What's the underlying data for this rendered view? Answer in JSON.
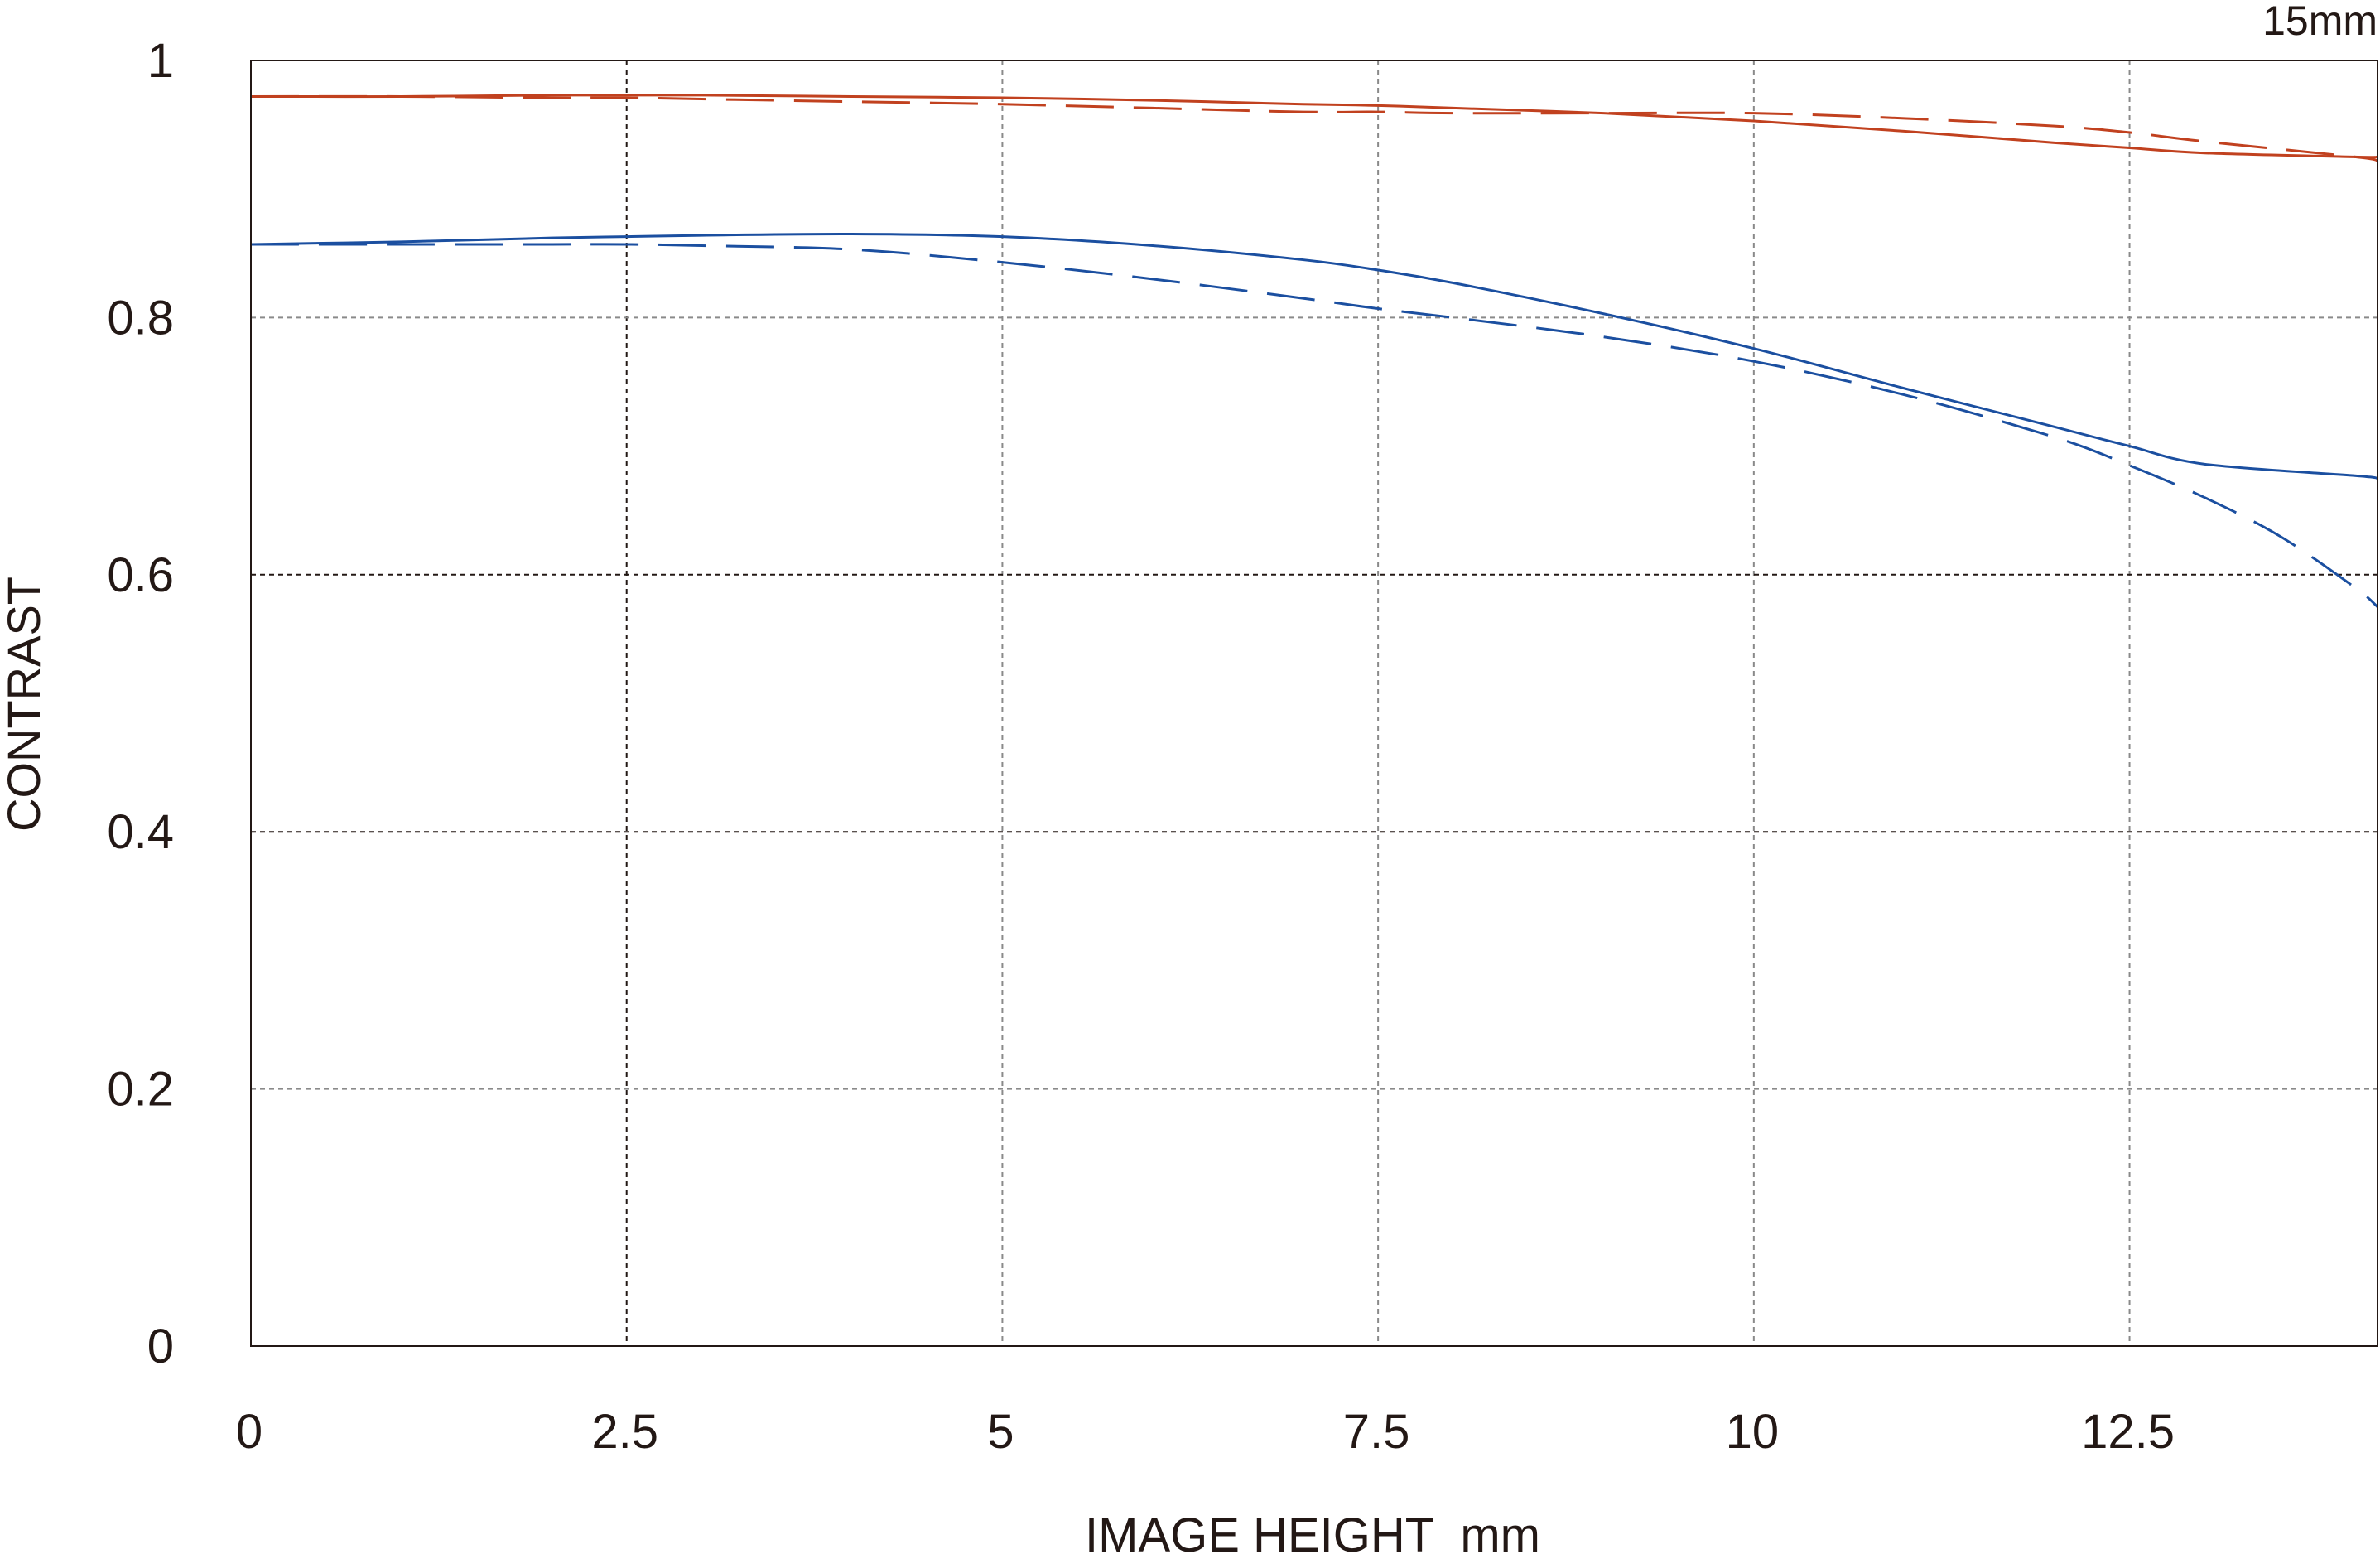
{
  "chart_data": {
    "type": "line",
    "title": "15mm",
    "xlabel": "IMAGE HEIGHT  mm",
    "ylabel": "CONTRAST",
    "xlim": [
      0,
      14.15
    ],
    "ylim": [
      0,
      1
    ],
    "x_ticks": [
      0,
      2.5,
      5,
      7.5,
      10,
      12.5
    ],
    "x_tick_labels": [
      "0",
      "2.5",
      "5",
      "7.5",
      "10",
      "12.5"
    ],
    "y_ticks": [
      0,
      0.2,
      0.4,
      0.6,
      0.8,
      1
    ],
    "y_tick_labels": [
      "0",
      "0.2",
      "0.4",
      "0.6",
      "0.8",
      "1"
    ],
    "grid": true,
    "legend": "none",
    "series": [
      {
        "color": "#c1411f",
        "dash": "solid",
        "x": [
          0,
          1,
          2,
          2.5,
          3,
          4,
          5,
          6,
          7,
          7.5,
          8,
          9,
          10,
          11,
          12,
          12.5,
          13,
          14,
          14.15
        ],
        "y": [
          0.972,
          0.972,
          0.973,
          0.973,
          0.973,
          0.972,
          0.971,
          0.969,
          0.966,
          0.965,
          0.963,
          0.959,
          0.953,
          0.945,
          0.936,
          0.932,
          0.928,
          0.925,
          0.925
        ]
      },
      {
        "color": "#c1411f",
        "dash": "dashed",
        "x": [
          0,
          1,
          2,
          2.5,
          3,
          4,
          5,
          6,
          7,
          7.5,
          8,
          9,
          10,
          11,
          12,
          12.5,
          13,
          14,
          14.15
        ],
        "y": [
          0.972,
          0.972,
          0.971,
          0.971,
          0.97,
          0.968,
          0.966,
          0.963,
          0.96,
          0.96,
          0.959,
          0.959,
          0.959,
          0.955,
          0.949,
          0.944,
          0.937,
          0.925,
          0.922
        ]
      },
      {
        "color": "#1b4fa0",
        "dash": "solid",
        "x": [
          0,
          1,
          2,
          2.5,
          3,
          4,
          5,
          6,
          7,
          7.5,
          8,
          9,
          10,
          11,
          12,
          12.5,
          13,
          14,
          14.15
        ],
        "y": [
          0.857,
          0.859,
          0.862,
          0.863,
          0.864,
          0.865,
          0.863,
          0.856,
          0.845,
          0.837,
          0.827,
          0.803,
          0.776,
          0.745,
          0.715,
          0.7,
          0.686,
          0.677,
          0.675
        ]
      },
      {
        "color": "#1b4fa0",
        "dash": "dashed",
        "x": [
          0,
          1,
          2,
          2.5,
          3,
          4,
          5,
          6,
          7,
          7.5,
          8,
          9,
          10,
          11,
          12,
          12.5,
          13,
          13.5,
          14,
          14.15
        ],
        "y": [
          0.857,
          0.857,
          0.857,
          0.857,
          0.856,
          0.853,
          0.843,
          0.83,
          0.815,
          0.807,
          0.8,
          0.785,
          0.766,
          0.74,
          0.707,
          0.685,
          0.66,
          0.63,
          0.59,
          0.575
        ]
      }
    ]
  }
}
